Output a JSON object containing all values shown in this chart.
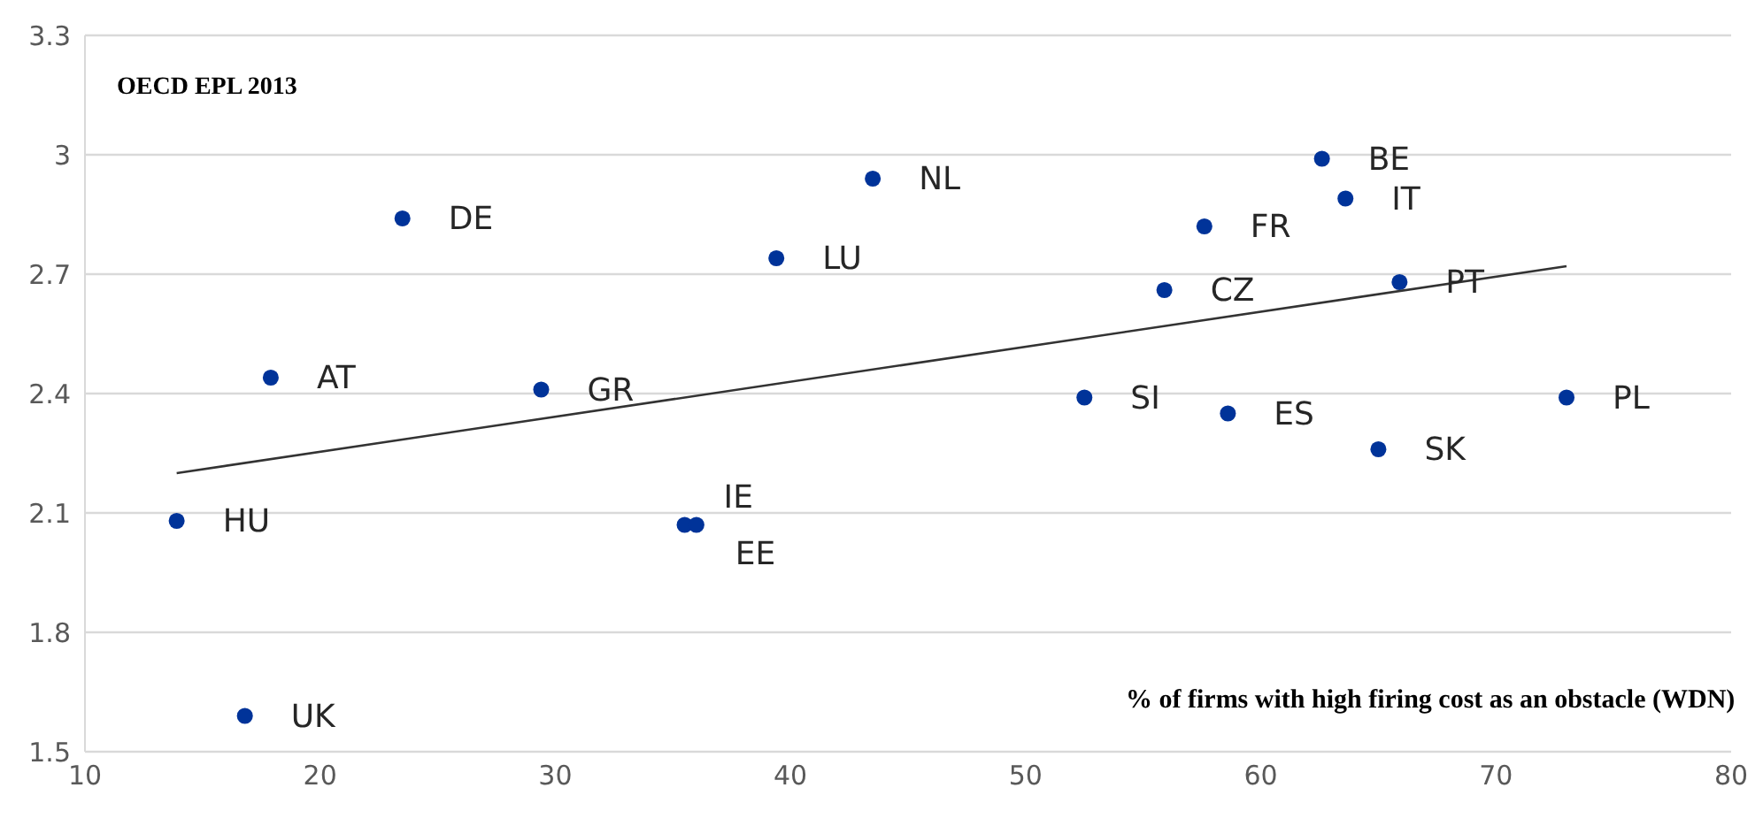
{
  "chart_data": {
    "type": "scatter",
    "title": "OECD EPL 2013",
    "xlabel": "% of firms with high firing cost as an obstacle (WDN)",
    "x": [
      23.5,
      17.9,
      29.4,
      13.9,
      16.8,
      35.5,
      36.0,
      39.4,
      43.5,
      52.5,
      55.9,
      57.6,
      58.6,
      62.6,
      63.6,
      65.0,
      65.9,
      73.0
    ],
    "series": [
      {
        "color": "#003399",
        "marker": "circle",
        "values": [
          2.84,
          2.44,
          2.41,
          2.08,
          1.59,
          2.07,
          2.07,
          2.74,
          2.94,
          2.39,
          2.66,
          2.82,
          2.35,
          2.99,
          2.89,
          2.26,
          2.68,
          2.39
        ]
      },
      {
        "type": "line",
        "color": "#333333",
        "x": [
          13.9,
          73.0
        ],
        "values": [
          2.2,
          2.72
        ]
      }
    ],
    "annotations": [
      {
        "text": "DE",
        "x": 23.5,
        "y": 2.84
      },
      {
        "text": "AT",
        "x": 17.9,
        "y": 2.44
      },
      {
        "text": "GR",
        "x": 29.4,
        "y": 2.41
      },
      {
        "text": "HU",
        "x": 13.9,
        "y": 2.08
      },
      {
        "text": "UK",
        "x": 16.8,
        "y": 1.59
      },
      {
        "text": "IE",
        "x": 35.5,
        "y": 2.07
      },
      {
        "text": "EE",
        "x": 36.0,
        "y": 2.07
      },
      {
        "text": "LU",
        "x": 39.4,
        "y": 2.74
      },
      {
        "text": "NL",
        "x": 43.5,
        "y": 2.94
      },
      {
        "text": "SI",
        "x": 52.5,
        "y": 2.39
      },
      {
        "text": "CZ",
        "x": 55.9,
        "y": 2.66
      },
      {
        "text": "FR",
        "x": 57.6,
        "y": 2.82
      },
      {
        "text": "ES",
        "x": 58.6,
        "y": 2.35
      },
      {
        "text": "BE",
        "x": 62.6,
        "y": 2.99
      },
      {
        "text": "IT",
        "x": 63.6,
        "y": 2.89
      },
      {
        "text": "SK",
        "x": 65.0,
        "y": 2.26
      },
      {
        "text": "PT",
        "x": 65.9,
        "y": 2.68
      },
      {
        "text": "PL",
        "x": 73.0,
        "y": 2.39
      }
    ],
    "xlim": [
      10,
      80
    ],
    "xticks": [
      10,
      20,
      30,
      40,
      50,
      60,
      70,
      80
    ],
    "ylim": [
      1.5,
      3.3
    ],
    "yticks": [
      1.5,
      1.8,
      2.1,
      2.4,
      2.7,
      3,
      3.3
    ],
    "grid": "y"
  }
}
